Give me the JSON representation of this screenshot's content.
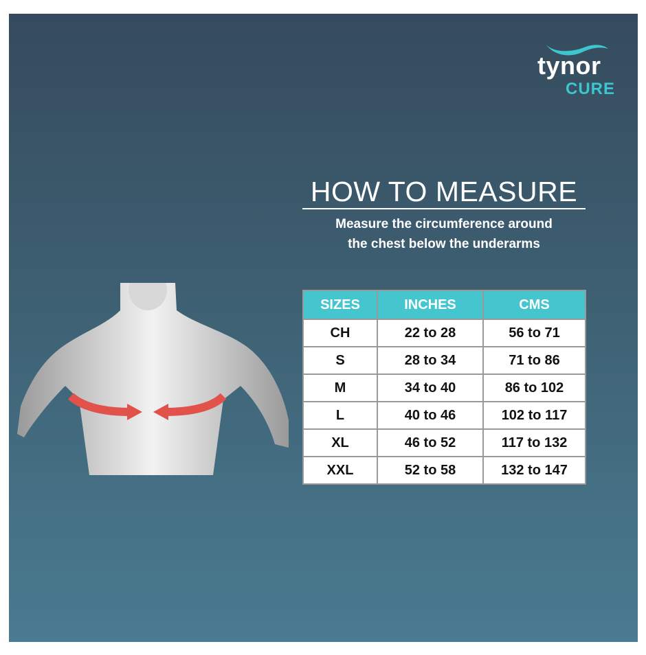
{
  "brand": {
    "name": "tynor",
    "sub": "CURE",
    "accent": "#45c6cf"
  },
  "heading": {
    "title": "HOW TO MEASURE",
    "subtitle_line1": "Measure the circumference around",
    "subtitle_line2": "the chest below the underarms"
  },
  "table": {
    "headers": [
      "SIZES",
      "INCHES",
      "CMS"
    ],
    "rows": [
      [
        "CH",
        "22 to 28",
        "56 to 71"
      ],
      [
        "S",
        "28 to 34",
        "71 to 86"
      ],
      [
        "M",
        "34 to 40",
        "86 to 102"
      ],
      [
        "L",
        "40 to 46",
        "102 to 117"
      ],
      [
        "XL",
        "46 to 52",
        "117 to 132"
      ],
      [
        "XXL",
        "52 to 58",
        "132 to 147"
      ]
    ]
  },
  "illustration": {
    "icon": "chest-measurement-figure",
    "arrow_color": "#e0524a"
  }
}
